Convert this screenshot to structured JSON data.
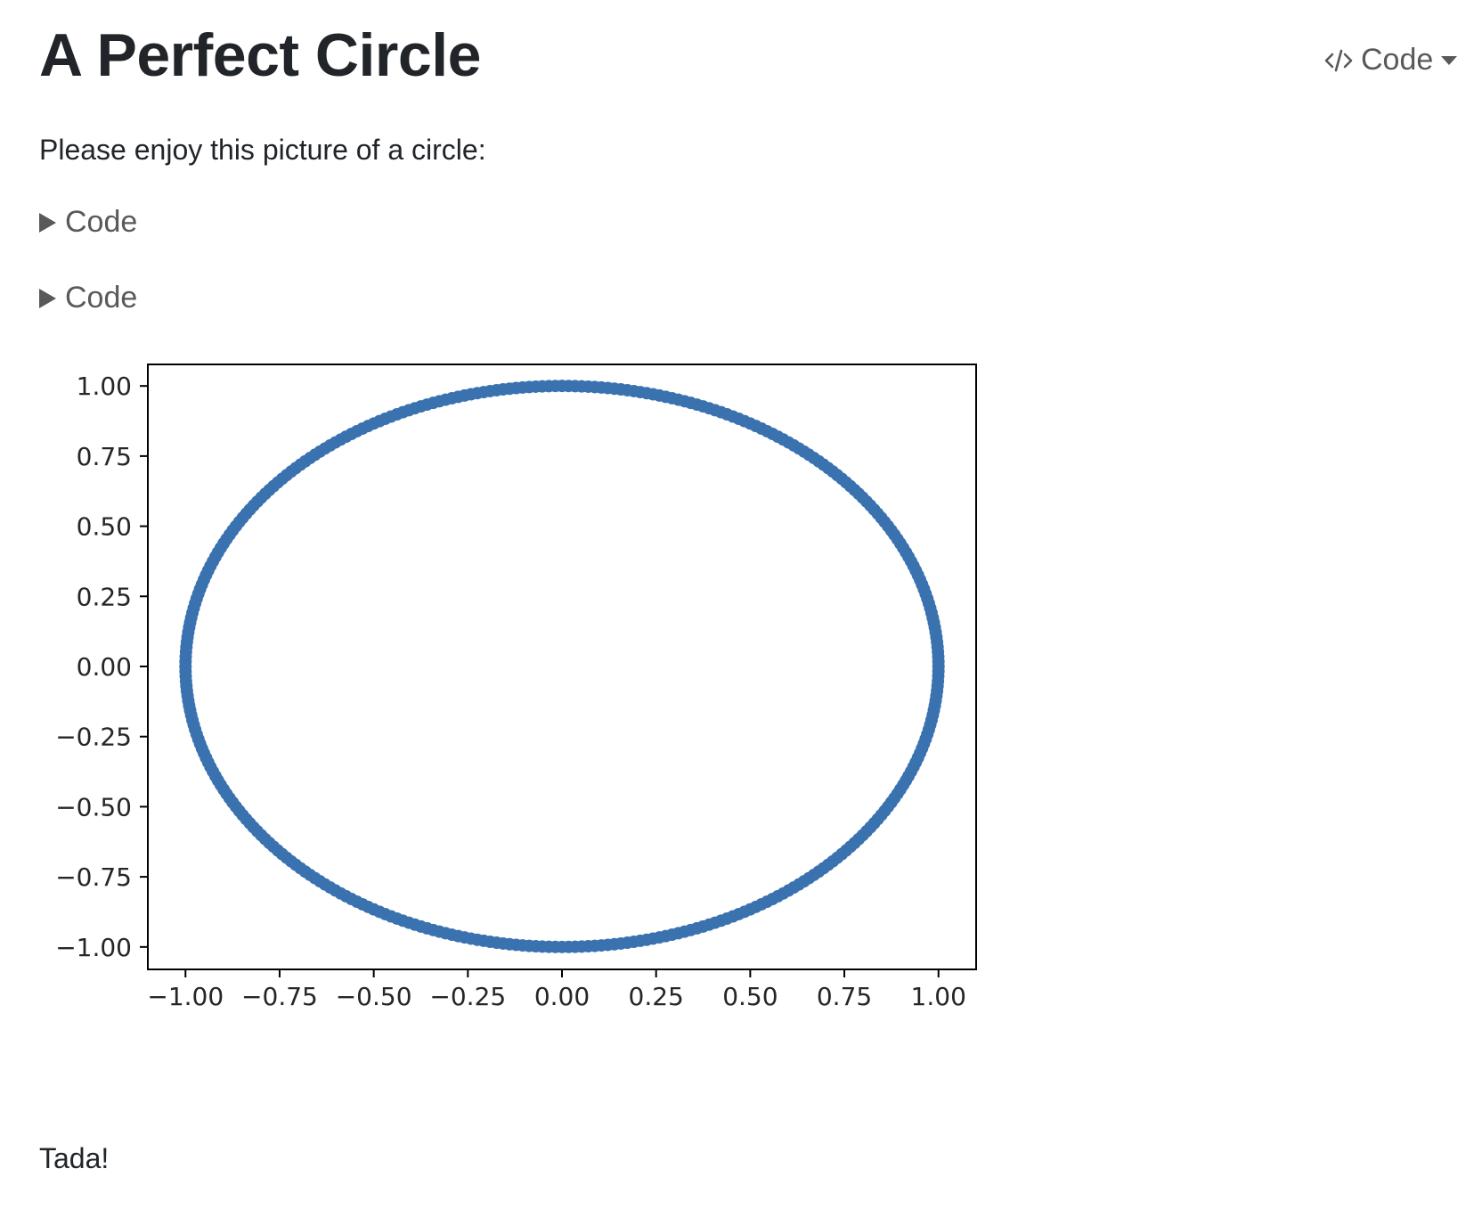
{
  "page": {
    "title": "A Perfect Circle",
    "intro": "Please enjoy this picture of a circle:",
    "outro": "Tada!"
  },
  "toolbar": {
    "code_tools_label": "Code"
  },
  "folds": [
    {
      "label": "Code"
    },
    {
      "label": "Code"
    }
  ],
  "colors": {
    "marker": "#3a72b0",
    "text": "#212529",
    "muted": "#595959"
  },
  "chart_data": {
    "type": "scatter",
    "title": "",
    "xlabel": "",
    "ylabel": "",
    "series": [
      {
        "equation": "x^2 + y^2 = 1",
        "points": 360
      }
    ],
    "xlim": [
      -1.1,
      1.1
    ],
    "ylim": [
      -1.08,
      1.08
    ],
    "xticks": [
      -1.0,
      -0.75,
      -0.5,
      -0.25,
      0.0,
      0.25,
      0.5,
      0.75,
      1.0
    ],
    "yticks": [
      -1.0,
      -0.75,
      -0.5,
      -0.25,
      0.0,
      0.25,
      0.5,
      0.75,
      1.0
    ],
    "xtick_labels": [
      "−1.00",
      "−0.75",
      "−0.50",
      "−0.25",
      "0.00",
      "0.25",
      "0.50",
      "0.75",
      "1.00"
    ],
    "ytick_labels": [
      "−1.00",
      "−0.75",
      "−0.50",
      "−0.25",
      "0.00",
      "0.25",
      "0.50",
      "0.75",
      "1.00"
    ],
    "grid": false,
    "legend": "none"
  }
}
